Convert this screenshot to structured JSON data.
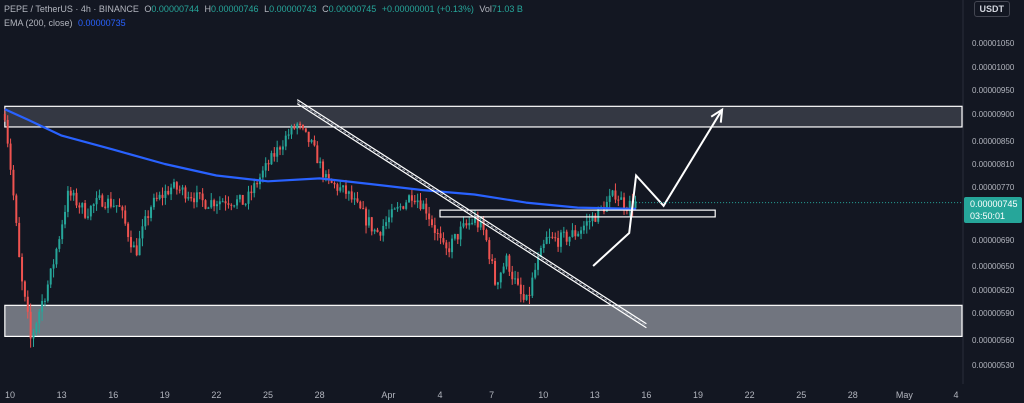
{
  "header": {
    "symbol": "PEPE / TetherUS · 4h · BINANCE",
    "open_label": "O",
    "open": "0.00000744",
    "high_label": "H",
    "high": "0.00000746",
    "low_label": "L",
    "low": "0.00000743",
    "close_label": "C",
    "close": "0.00000745",
    "change": "+0.00000001 (+0.13%)",
    "volume_label": "Vol",
    "volume": "71.03 B",
    "ema_label": "EMA (200, close)",
    "ema_value": "0.00000735",
    "currency": "USDT"
  },
  "price_tag": {
    "price": "0.00000745",
    "countdown": "03:50:01"
  },
  "colors": {
    "background": "#131722",
    "up": "#26a69a",
    "down": "#ef5350",
    "ema": "#2962ff",
    "drawing": "#ffffff",
    "zone_fill": "#cfd3dc"
  },
  "chart_data": {
    "type": "candlestick",
    "timeframe": "4h",
    "y_axis_ticks": [
      "0.00001050",
      "0.00001000",
      "0.00000950",
      "0.00000900",
      "0.00000850",
      "0.00000810",
      "0.00000770",
      "0.00000730",
      "0.00000690",
      "0.00000650",
      "0.00000620",
      "0.00000590",
      "0.00000560",
      "0.00000530"
    ],
    "x_axis_ticks": [
      "10",
      "13",
      "16",
      "19",
      "22",
      "25",
      "28",
      "Apr",
      "4",
      "7",
      "10",
      "13",
      "16",
      "19",
      "22",
      "25",
      "28",
      "May",
      "4"
    ],
    "x_tick_days": [
      10,
      13,
      16,
      19,
      22,
      25,
      28,
      32,
      35,
      38,
      41,
      44,
      47,
      50,
      53,
      56,
      59,
      62,
      65
    ],
    "x_day_note": "day 32 = Apr 1, day 62 = May 1",
    "ylim": [
      5.1e-06,
      1.08e-05
    ],
    "price_path": [
      {
        "day": 9.7,
        "price": 9e-06
      },
      {
        "day": 10.6,
        "price": 6.4e-06
      },
      {
        "day": 11.2,
        "price": 5.6e-06
      },
      {
        "day": 12.4,
        "price": 6.4e-06
      },
      {
        "day": 13.4,
        "price": 7.6e-06
      },
      {
        "day": 14.4,
        "price": 7.3e-06
      },
      {
        "day": 15.3,
        "price": 7.5e-06
      },
      {
        "day": 16.3,
        "price": 7.4e-06
      },
      {
        "day": 17.3,
        "price": 6.7e-06
      },
      {
        "day": 18.2,
        "price": 7.4e-06
      },
      {
        "day": 19.4,
        "price": 7.7e-06
      },
      {
        "day": 20.4,
        "price": 7.6e-06
      },
      {
        "day": 21.3,
        "price": 7.45e-06
      },
      {
        "day": 22.5,
        "price": 7.5e-06
      },
      {
        "day": 23.7,
        "price": 7.45e-06
      },
      {
        "day": 24.8,
        "price": 8e-06
      },
      {
        "day": 26.1,
        "price": 8.6e-06
      },
      {
        "day": 26.7,
        "price": 8.8e-06
      },
      {
        "day": 27.6,
        "price": 8.4e-06
      },
      {
        "day": 28.4,
        "price": 7.8e-06
      },
      {
        "day": 29.6,
        "price": 7.6e-06
      },
      {
        "day": 30.4,
        "price": 7.3e-06
      },
      {
        "day": 31.3,
        "price": 7e-06
      },
      {
        "day": 32.6,
        "price": 7.35e-06
      },
      {
        "day": 33.4,
        "price": 7.6e-06
      },
      {
        "day": 34.2,
        "price": 7.35e-06
      },
      {
        "day": 35.3,
        "price": 6.7e-06
      },
      {
        "day": 36.1,
        "price": 7e-06
      },
      {
        "day": 37.0,
        "price": 7.2e-06
      },
      {
        "day": 37.6,
        "price": 7e-06
      },
      {
        "day": 38.2,
        "price": 6.3e-06
      },
      {
        "day": 38.9,
        "price": 6.6e-06
      },
      {
        "day": 39.5,
        "price": 6.2e-06
      },
      {
        "day": 40.0,
        "price": 6e-06
      },
      {
        "day": 40.6,
        "price": 6.5e-06
      },
      {
        "day": 41.2,
        "price": 6.9e-06
      },
      {
        "day": 42.0,
        "price": 6.9e-06
      },
      {
        "day": 42.9,
        "price": 7e-06
      },
      {
        "day": 43.8,
        "price": 7.2e-06
      },
      {
        "day": 44.6,
        "price": 7.4e-06
      },
      {
        "day": 45.2,
        "price": 7.6e-06
      },
      {
        "day": 45.8,
        "price": 7.4e-06
      },
      {
        "day": 46.4,
        "price": 7.45e-06
      }
    ],
    "ema": {
      "name": "EMA (200, close)",
      "points": [
        {
          "day": 9.7,
          "price": 9.1e-06
        },
        {
          "day": 11.0,
          "price": 8.9e-06
        },
        {
          "day": 13.0,
          "price": 8.6e-06
        },
        {
          "day": 16.0,
          "price": 8.35e-06
        },
        {
          "day": 19.0,
          "price": 8.1e-06
        },
        {
          "day": 22.0,
          "price": 7.9e-06
        },
        {
          "day": 25.0,
          "price": 7.8e-06
        },
        {
          "day": 28.0,
          "price": 7.85e-06
        },
        {
          "day": 31.0,
          "price": 7.75e-06
        },
        {
          "day": 34.0,
          "price": 7.65e-06
        },
        {
          "day": 37.0,
          "price": 7.58e-06
        },
        {
          "day": 40.0,
          "price": 7.45e-06
        },
        {
          "day": 43.0,
          "price": 7.37e-06
        },
        {
          "day": 46.4,
          "price": 7.35e-06
        }
      ]
    },
    "drawings": {
      "upper_zone": {
        "from_price": 8.76e-06,
        "to_price": 9.16e-06,
        "from_day": 9.7
      },
      "lower_zone": {
        "from_price": 5.64e-06,
        "to_price": 6e-06,
        "from_day": 9.7
      },
      "breakout_box": {
        "from_day": 35.0,
        "to_day": 51.0,
        "from_price": 7.23e-06,
        "to_price": 7.33e-06
      },
      "descending_trendline": {
        "start": {
          "day": 26.7,
          "price": 9.3e-06
        },
        "end": {
          "day": 47.0,
          "price": 5.78e-06
        }
      },
      "projection_path": [
        {
          "day": 43.9,
          "price": 6.5e-06
        },
        {
          "day": 46.0,
          "price": 7e-06
        },
        {
          "day": 46.4,
          "price": 7.9e-06
        },
        {
          "day": 48.0,
          "price": 7.4e-06
        },
        {
          "day": 51.4,
          "price": 9.09e-06
        }
      ]
    }
  }
}
